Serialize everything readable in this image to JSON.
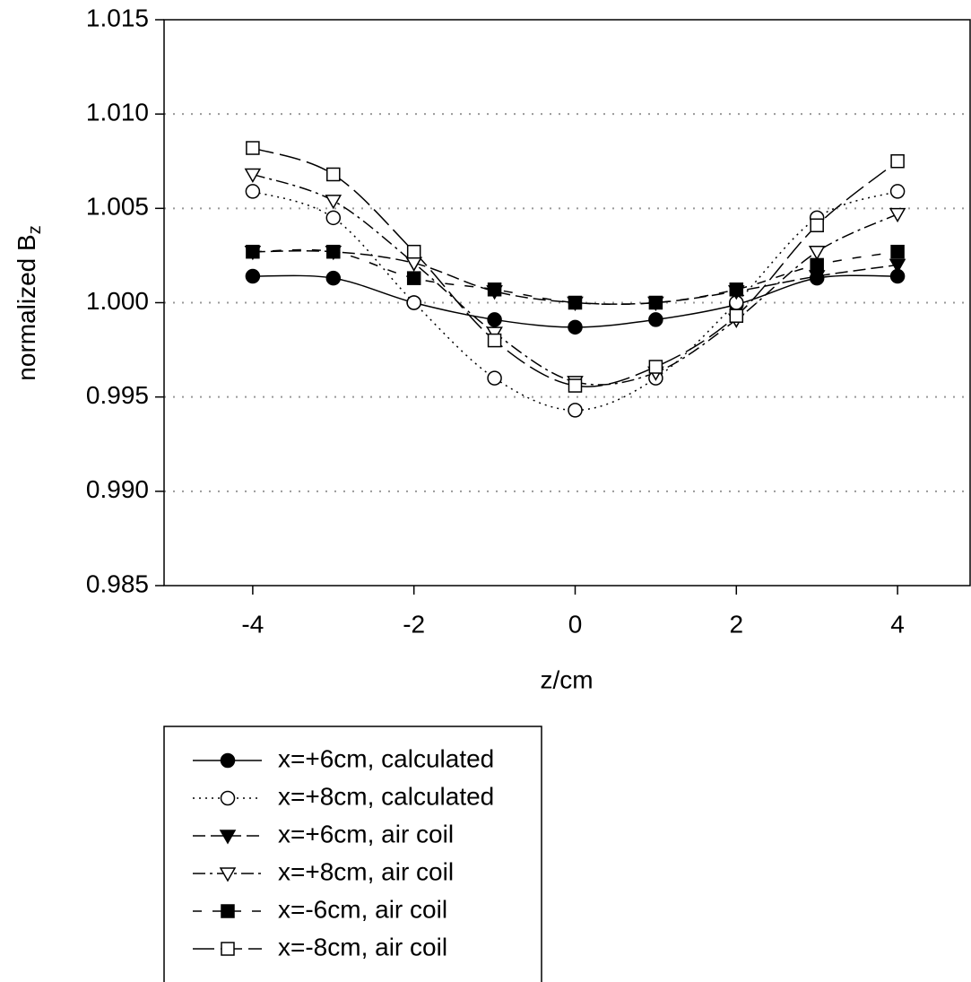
{
  "chart_data": {
    "type": "line",
    "ylabel": "normalized B",
    "ylabel_subscript": "z",
    "xlabel": "z/cm",
    "x": [
      -4,
      -3,
      -2,
      -1,
      0,
      1,
      2,
      3,
      4
    ],
    "xlim": [
      -5.1,
      4.9
    ],
    "xticks": [
      -4,
      -2,
      0,
      2,
      4
    ],
    "ylim": [
      0.985,
      1.015
    ],
    "yticks": [
      0.985,
      {
        "value": 0.99,
        "label": "0.990"
      },
      0.995,
      {
        "value": 1.0,
        "label": "1.000"
      },
      {
        "value": 1.005,
        "label": "1.005"
      },
      {
        "value": 1.01,
        "label": "1.010"
      },
      1.015
    ],
    "grid": true,
    "series": [
      {
        "name": "x=+6cm, calculated",
        "color": "#000000",
        "marker": "circle",
        "filled": true,
        "dash": "solid",
        "values": [
          1.0014,
          1.0013,
          1.0,
          0.9991,
          0.9987,
          0.9991,
          0.9999,
          1.0013,
          1.0014
        ]
      },
      {
        "name": "x=+8cm, calculated",
        "color": "#000000",
        "marker": "circle",
        "filled": false,
        "dash": "dotted",
        "values": [
          1.0059,
          1.0045,
          1.0,
          0.996,
          0.9943,
          0.996,
          1.0,
          1.0045,
          1.0059
        ]
      },
      {
        "name": "x=+6cm, air coil",
        "color": "#000000",
        "marker": "triangle-down",
        "filled": true,
        "dash": "dashed",
        "values": [
          1.0027,
          1.0027,
          1.0021,
          1.0006,
          1.0,
          1.0,
          1.0006,
          1.0014,
          1.002
        ]
      },
      {
        "name": "x=+8cm, air coil",
        "color": "#000000",
        "marker": "triangle-down",
        "filled": false,
        "dash": "dashdot",
        "values": [
          1.0068,
          1.0054,
          1.0021,
          0.9984,
          0.9958,
          0.9963,
          0.9991,
          1.0027,
          1.0047
        ]
      },
      {
        "name": "x=-6cm, air coil",
        "color": "#000000",
        "marker": "square",
        "filled": true,
        "dash": "sparse-dashed",
        "values": [
          1.0027,
          1.0027,
          1.0013,
          1.0007,
          1.0,
          1.0,
          1.0007,
          1.002,
          1.0027
        ]
      },
      {
        "name": "x=-8cm, air coil",
        "color": "#000000",
        "marker": "square",
        "filled": false,
        "dash": "long-dashed",
        "values": [
          1.0082,
          1.0068,
          1.0027,
          0.998,
          0.9956,
          0.9966,
          0.9993,
          1.0041,
          1.0075
        ]
      }
    ]
  }
}
